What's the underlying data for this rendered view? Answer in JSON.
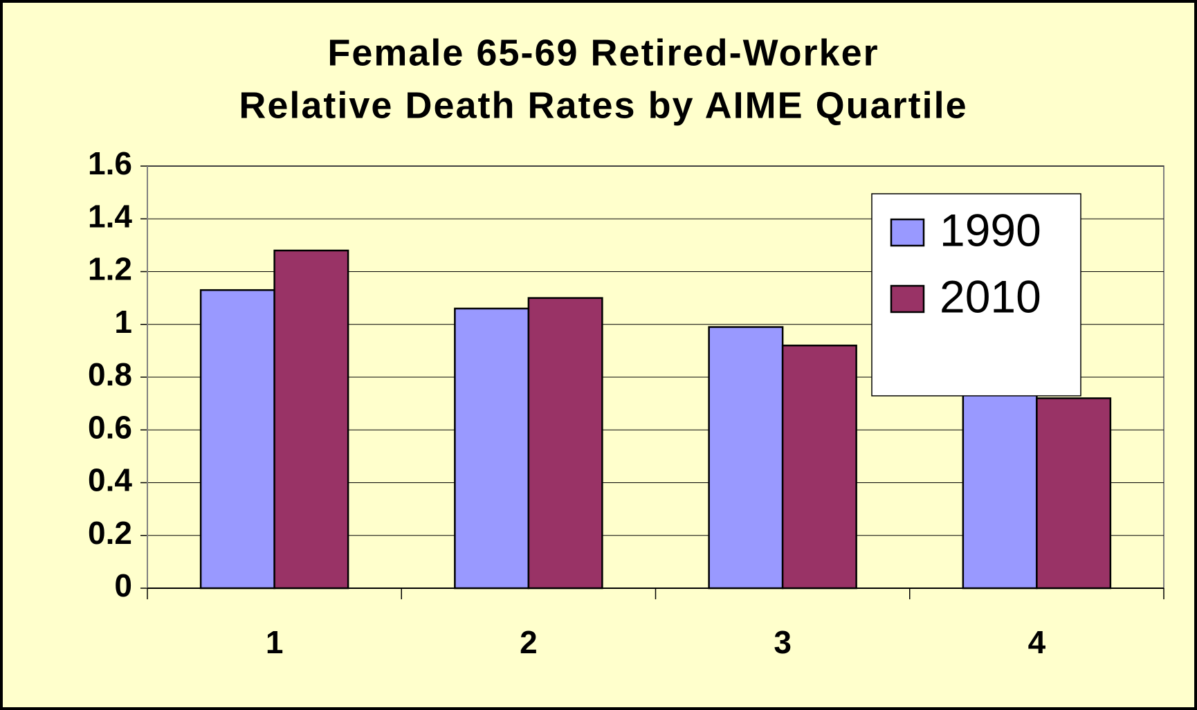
{
  "chart_data": {
    "type": "bar",
    "title": [
      "Female 65-69 Retired-Worker",
      "Relative Death Rates by AIME Quartile"
    ],
    "categories": [
      "1",
      "2",
      "3",
      "4"
    ],
    "series": [
      {
        "name": "1990",
        "color": "#9999ff",
        "values": [
          1.13,
          1.06,
          0.99,
          0.81
        ]
      },
      {
        "name": "2010",
        "color": "#993366",
        "values": [
          1.28,
          1.1,
          0.92,
          0.72
        ]
      }
    ],
    "ylim": [
      0,
      1.6
    ],
    "yticks": [
      0,
      0.2,
      0.4,
      0.6,
      0.8,
      1,
      1.2,
      1.4,
      1.6
    ],
    "grid": true,
    "legend": "top-right"
  }
}
